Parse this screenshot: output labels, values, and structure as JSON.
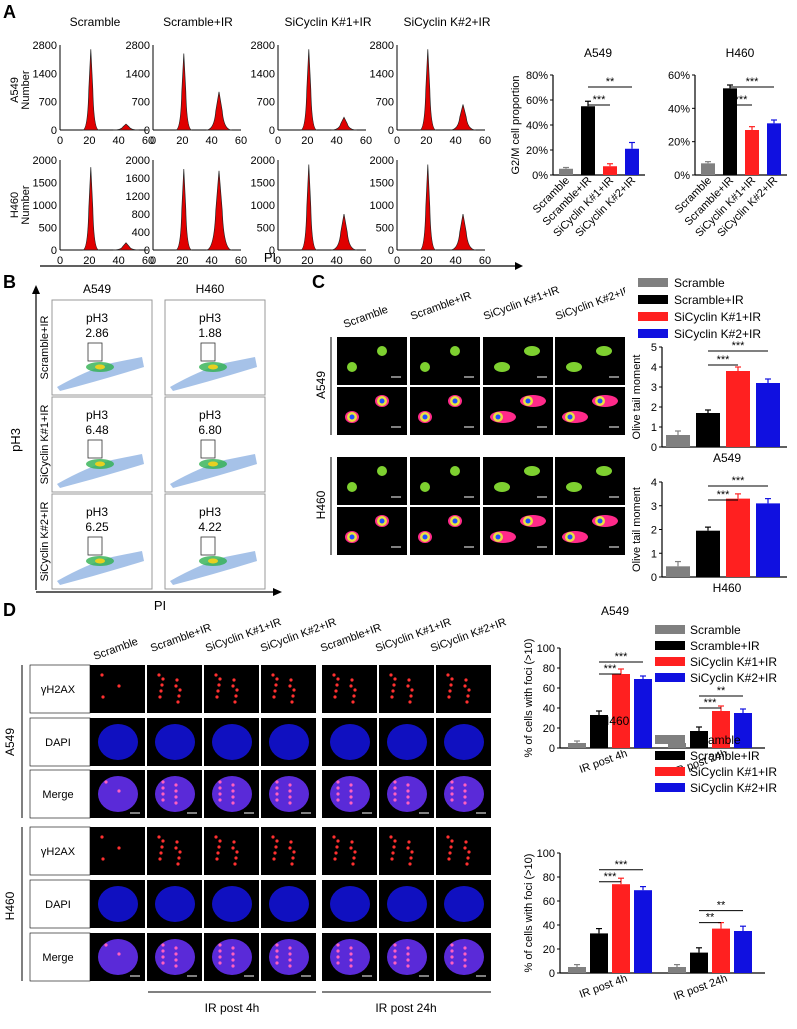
{
  "panels": {
    "a": "A",
    "b": "B",
    "c": "C",
    "d": "D"
  },
  "colors": {
    "scramble": "#808080",
    "scramble_ir": "#000000",
    "k1": "#ff2020",
    "k2": "#1010e0",
    "peak": "#e00000",
    "blue_nuc": "#1010c0"
  },
  "panelA": {
    "column_titles": [
      "Scramble",
      "Scramble+IR",
      "SiCyclin K#1+IR",
      "SiCyclin K#2+IR"
    ],
    "row_labels": [
      "A549\nNumber",
      "H460\nNumber"
    ],
    "row_a549": "A549",
    "row_h460": "H460",
    "number": "Number",
    "x_ticks": [
      "0",
      "20",
      "40",
      "60"
    ],
    "y_ticks_a549": [
      [
        "2800",
        "1400",
        "700",
        "0"
      ],
      [
        "2800",
        "1400",
        "700",
        "0"
      ],
      [
        "2800",
        "1400",
        "700",
        "0"
      ],
      [
        "2800",
        "1400",
        "700",
        "0"
      ]
    ],
    "y_ticks_h460": [
      [
        "2000",
        "1500",
        "1000",
        "500",
        "0"
      ],
      [
        "2000",
        "1600",
        "1200",
        "800",
        "400",
        "0"
      ],
      [
        "2000",
        "1500",
        "1000",
        "500",
        "0"
      ],
      [
        "2000",
        "1500",
        "1000",
        "500",
        "0"
      ]
    ],
    "xaxis_label": "PI"
  },
  "panelB": {
    "col_titles": [
      "A549",
      "H460"
    ],
    "row_labels": [
      "Scramble+IR",
      "SiCyclin K#1+IR",
      "SiCyclin K#2+IR"
    ],
    "gate_label": "pH3",
    "values": [
      [
        "2.86",
        "1.88"
      ],
      [
        "6.48",
        "6.80"
      ],
      [
        "6.25",
        "4.22"
      ]
    ],
    "ylabel": "pH3",
    "xlabel": "PI"
  },
  "panelC": {
    "col_titles": [
      "Scramble",
      "Scramble+IR",
      "SiCyclin K#1+IR",
      "SiCyclin K#2+IR"
    ],
    "row_labels": [
      "A549",
      "H460"
    ]
  },
  "panelD": {
    "col_titles_4h": [
      "Scramble",
      "Scramble+IR",
      "SiCyclin K#1+IR",
      "SiCyclin K#2+IR"
    ],
    "col_titles_24h": [
      "Scramble+IR",
      "SiCyclin K#1+IR",
      "SiCyclin K#2+IR"
    ],
    "stain_labels": [
      "γH2AX",
      "DAPI",
      "Merge"
    ],
    "row_labels": [
      "A549",
      "H460"
    ],
    "bottom_labels": [
      "IR post 4h",
      "IR post 24h"
    ]
  },
  "chart_data": [
    {
      "id": "a_a549",
      "type": "bar",
      "title": "A549",
      "ylabel": "G2/M cell proportion",
      "categories": [
        "Scramble",
        "Scramble+IR",
        "SiCyclin K#1+IR",
        "SiCyclin K#2+IR"
      ],
      "values": [
        5,
        55,
        7,
        21
      ],
      "errors": [
        1,
        4,
        2,
        5
      ],
      "ylim": [
        0,
        80
      ],
      "yticks": [
        0,
        20,
        40,
        60,
        80
      ],
      "ytick_labels": [
        "0%",
        "20%",
        "40%",
        "60%",
        "80%"
      ],
      "sig": [
        {
          "from": 1,
          "to": 2,
          "label": "***"
        },
        {
          "from": 1,
          "to": 3,
          "label": "**"
        }
      ]
    },
    {
      "id": "a_h460",
      "type": "bar",
      "title": "H460",
      "ylabel": "",
      "categories": [
        "Scramble",
        "Scramble+IR",
        "SiCyclin K#1+IR",
        "SiCyclin K#2+IR"
      ],
      "values": [
        7,
        52,
        27,
        31
      ],
      "errors": [
        1,
        2,
        2,
        2
      ],
      "ylim": [
        0,
        60
      ],
      "yticks": [
        0,
        20,
        40,
        60
      ],
      "ytick_labels": [
        "0%",
        "20%",
        "40%",
        "60%"
      ],
      "sig": [
        {
          "from": 1,
          "to": 2,
          "label": "***"
        },
        {
          "from": 1,
          "to": 3,
          "label": "***"
        }
      ]
    },
    {
      "id": "c_a549",
      "type": "bar",
      "title": "A549",
      "ylabel": "Olive tail moment",
      "legend": [
        "Scramble",
        "Scramble+IR",
        "SiCyclin K#1+IR",
        "SiCyclin K#2+IR"
      ],
      "values": [
        0.6,
        1.7,
        3.8,
        3.2
      ],
      "errors": [
        0.2,
        0.15,
        0.2,
        0.2
      ],
      "ylim": [
        0,
        5
      ],
      "yticks": [
        0,
        1,
        2,
        3,
        4,
        5
      ],
      "ytick_labels": [
        "0",
        "1",
        "2",
        "3",
        "4",
        "5"
      ],
      "sig": [
        {
          "from": 1,
          "to": 2,
          "label": "***"
        },
        {
          "from": 1,
          "to": 3,
          "label": "***"
        }
      ]
    },
    {
      "id": "c_h460",
      "type": "bar",
      "title": "H460",
      "ylabel": "Olive tail moment",
      "values": [
        0.45,
        1.95,
        3.3,
        3.1
      ],
      "errors": [
        0.2,
        0.15,
        0.2,
        0.2
      ],
      "ylim": [
        0,
        4
      ],
      "yticks": [
        0,
        1,
        2,
        3,
        4
      ],
      "ytick_labels": [
        "0",
        "1",
        "2",
        "3",
        "4"
      ],
      "sig": [
        {
          "from": 1,
          "to": 2,
          "label": "***"
        },
        {
          "from": 1,
          "to": 3,
          "label": "***"
        }
      ]
    },
    {
      "id": "d_a549",
      "type": "bar",
      "title": "A549",
      "ylabel": "% of cells with foci (>10)",
      "legend": [
        "Scramble",
        "Scramble+IR",
        "SiCyclin K#1+IR",
        "SiCyclin K#2+IR"
      ],
      "groups": [
        "IR post 4h",
        "IR post 24h"
      ],
      "series": [
        {
          "name": "Scramble",
          "values": [
            5,
            5
          ]
        },
        {
          "name": "Scramble+IR",
          "values": [
            33,
            17
          ]
        },
        {
          "name": "SiCyclin K#1+IR",
          "values": [
            74,
            37
          ]
        },
        {
          "name": "SiCyclin K#2+IR",
          "values": [
            69,
            35
          ]
        }
      ],
      "errors": [
        [
          2,
          2
        ],
        [
          4,
          4
        ],
        [
          5,
          5
        ],
        [
          3,
          4
        ]
      ],
      "ylim": [
        0,
        100
      ],
      "yticks": [
        0,
        20,
        40,
        60,
        80,
        100
      ],
      "ytick_labels": [
        "0",
        "20",
        "40",
        "60",
        "80",
        "100"
      ],
      "sig": [
        [
          0,
          1,
          2,
          "***"
        ],
        [
          0,
          1,
          3,
          "***"
        ],
        [
          1,
          1,
          2,
          "***"
        ],
        [
          1,
          1,
          3,
          "**"
        ]
      ]
    },
    {
      "id": "d_h460",
      "type": "bar",
      "title": "H460",
      "ylabel": "% of cells with foci (>10)",
      "legend": [
        "Scramble",
        "Scramble+IR",
        "SiCyclin K#1+IR",
        "SiCyclin K#2+IR"
      ],
      "groups": [
        "IR post 4h",
        "IR post 24h"
      ],
      "series": [
        {
          "name": "Scramble",
          "values": [
            5,
            5
          ]
        },
        {
          "name": "Scramble+IR",
          "values": [
            33,
            17
          ]
        },
        {
          "name": "SiCyclin K#1+IR",
          "values": [
            74,
            37
          ]
        },
        {
          "name": "SiCyclin K#2+IR",
          "values": [
            69,
            35
          ]
        }
      ],
      "errors": [
        [
          2,
          2
        ],
        [
          4,
          4
        ],
        [
          5,
          5
        ],
        [
          3,
          4
        ]
      ],
      "ylim": [
        0,
        100
      ],
      "yticks": [
        0,
        20,
        40,
        60,
        80,
        100
      ],
      "ytick_labels": [
        "0",
        "20",
        "40",
        "60",
        "80",
        "100"
      ],
      "sig": [
        [
          0,
          1,
          2,
          "***"
        ],
        [
          0,
          1,
          3,
          "***"
        ],
        [
          1,
          1,
          2,
          "**"
        ],
        [
          1,
          1,
          3,
          "**"
        ]
      ]
    }
  ]
}
